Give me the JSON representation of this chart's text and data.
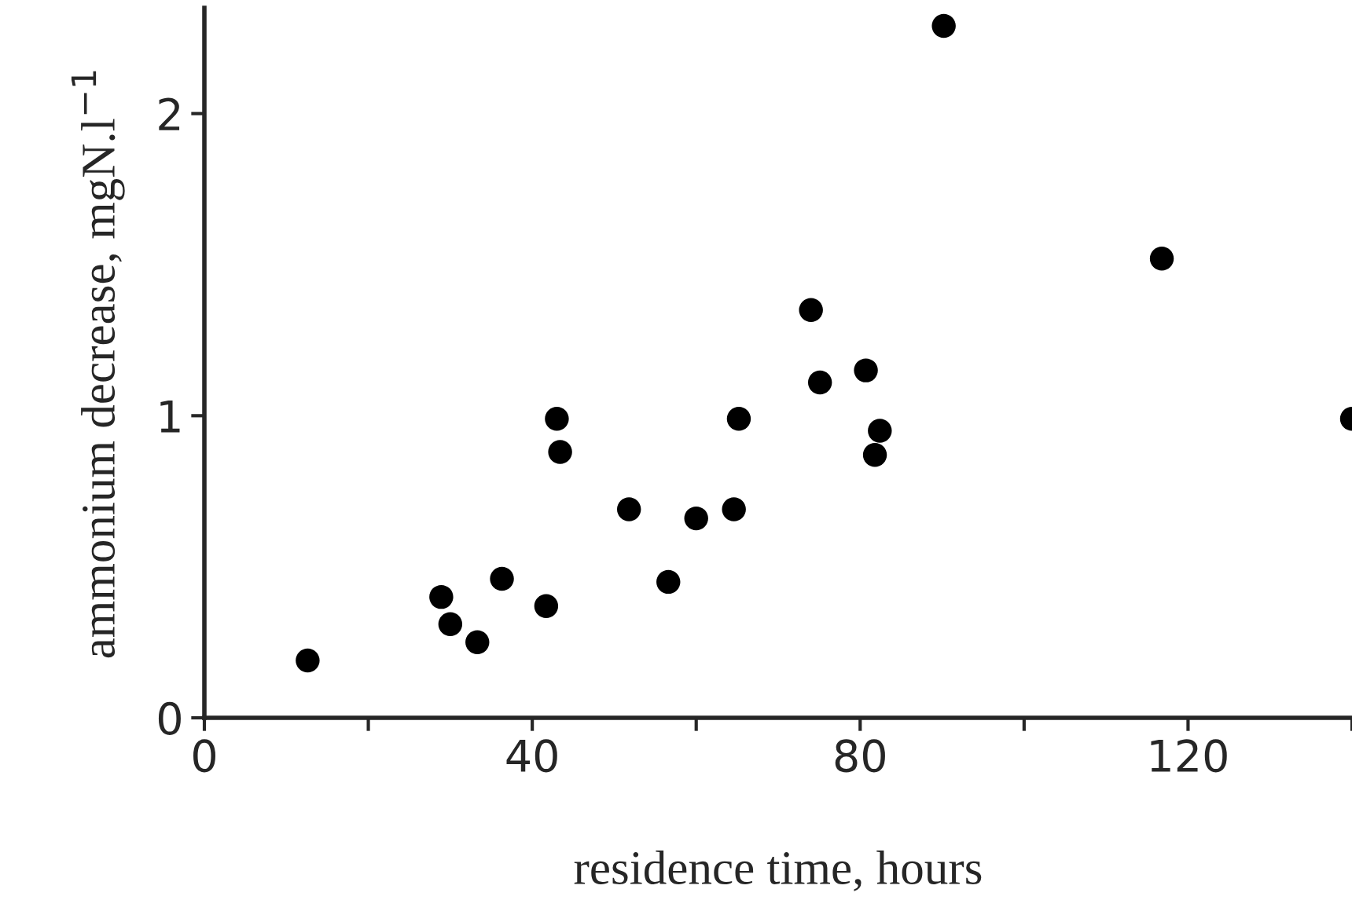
{
  "chart_data": {
    "type": "scatter",
    "xlabel": "residence time, hours",
    "ylabel": "ammonium decrease, mgN.l$^{−1}$",
    "x": [
      12.6,
      28.9,
      30.0,
      33.3,
      36.3,
      41.7,
      43.0,
      43.4,
      51.8,
      56.6,
      60.0,
      64.6,
      65.2,
      74.0,
      75.1,
      80.7,
      82.4,
      81.8,
      90.2,
      116.8,
      140
    ],
    "series": [
      {
        "color": "#000000",
        "values": [
          0.19,
          0.4,
          0.31,
          0.25,
          0.46,
          0.37,
          0.99,
          0.88,
          0.69,
          0.45,
          0.66,
          0.69,
          0.99,
          1.35,
          1.11,
          1.15,
          0.95,
          0.87,
          2.29,
          1.52,
          0.99
        ]
      }
    ],
    "xlim": [
      0,
      140
    ],
    "xticks": [
      0,
      {
        "value": 20,
        "label": null
      },
      40,
      {
        "value": 60,
        "label": null
      },
      80,
      {
        "value": 100,
        "label": null
      },
      120,
      {
        "value": 140,
        "label": null
      }
    ],
    "ylim": [
      0,
      2.35
    ],
    "yticks": [
      0,
      1,
      2
    ],
    "marker": "circle",
    "grid": false
  }
}
